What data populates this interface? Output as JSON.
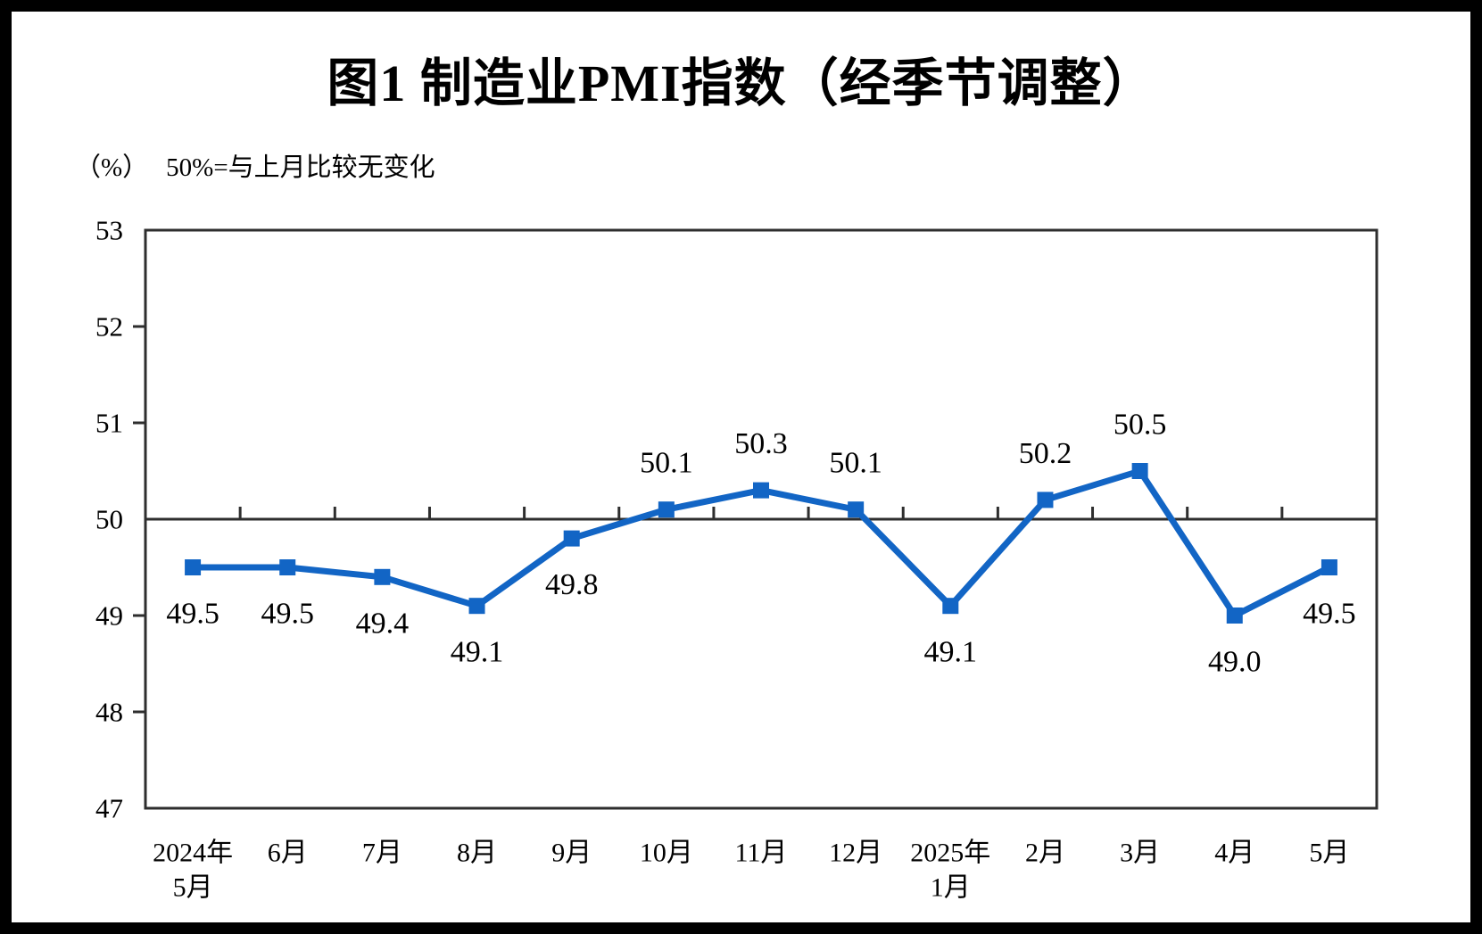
{
  "title": "图1  制造业PMI指数（经季节调整）",
  "subtitle": {
    "unit": "（%）",
    "note": "50%=与上月比较无变化"
  },
  "chart_data": {
    "type": "line",
    "title": "图1 制造业PMI指数（经季节调整）",
    "ylabel": "%",
    "categories": [
      [
        "2024年",
        "5月"
      ],
      [
        "6月"
      ],
      [
        "7月"
      ],
      [
        "8月"
      ],
      [
        "9月"
      ],
      [
        "10月"
      ],
      [
        "11月"
      ],
      [
        "12月"
      ],
      [
        "2025年",
        "1月"
      ],
      [
        "2月"
      ],
      [
        "3月"
      ],
      [
        "4月"
      ],
      [
        "5月"
      ]
    ],
    "series": [
      {
        "name": "制造业PMI指数",
        "values": [
          49.5,
          49.5,
          49.4,
          49.1,
          49.8,
          50.1,
          50.3,
          50.1,
          49.1,
          50.2,
          50.5,
          49.0,
          49.5
        ]
      }
    ],
    "ylim": [
      47,
      53
    ],
    "ytick_interval": 1,
    "ytick_labels": [
      "47",
      "48",
      "49",
      "50",
      "51",
      "52",
      "53"
    ],
    "reference_line": 50,
    "data_labels": true,
    "grid": false,
    "legend": "none",
    "line_color": "#1265c5",
    "axis_color": "#2e2e2e",
    "text_color": "#000000"
  }
}
